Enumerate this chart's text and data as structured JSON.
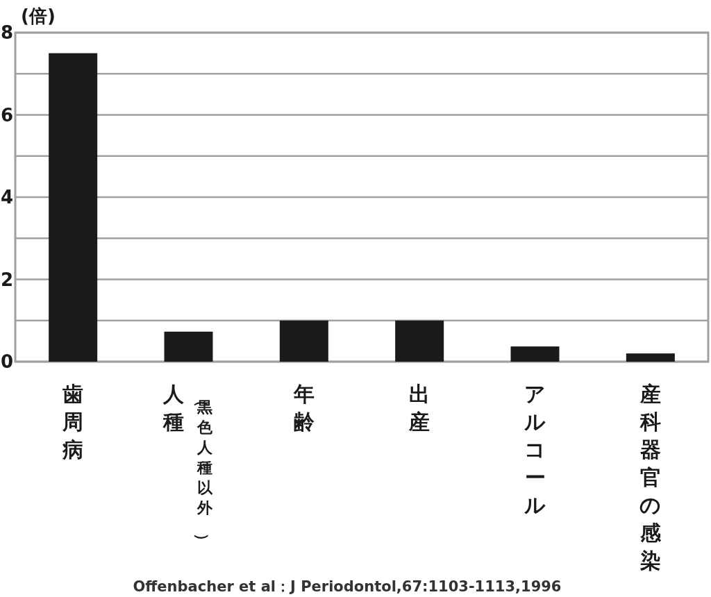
{
  "chart_data": {
    "type": "bar",
    "ylabel": "(倍)",
    "categories": [
      "歯周病",
      "人種（黒色人種以外）",
      "年齢",
      "出産",
      "アルコール",
      "産科器官の感染"
    ],
    "values": [
      7.5,
      0.73,
      1.0,
      1.0,
      0.37,
      0.2
    ],
    "color": "#1a1a1a",
    "ylim": [
      0,
      8
    ],
    "yticks": [
      0,
      {
        "value": 1,
        "label": null
      },
      2,
      {
        "value": 3,
        "label": null
      },
      4,
      {
        "value": 5,
        "label": null
      },
      6,
      {
        "value": 7,
        "label": null
      },
      8
    ],
    "grid": "y",
    "annotations": [
      "Offenbacher et al：J Periodontol,67:1103-1113,1996"
    ]
  }
}
